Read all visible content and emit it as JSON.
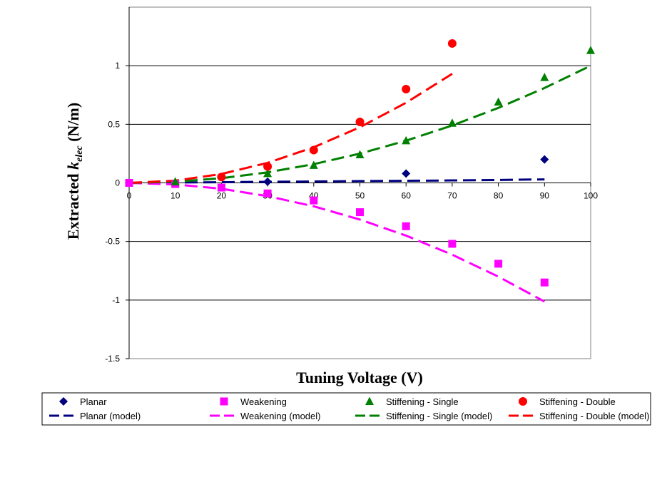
{
  "chart_data": {
    "type": "scatter",
    "xlabel": "Tuning Voltage (V)",
    "ylabel_main": "Extracted ",
    "ylabel_symbol": "k",
    "ylabel_sub": "elec",
    "ylabel_unit": " (N/m)",
    "xlim": [
      0,
      100
    ],
    "ylim": [
      -1.5,
      1.5
    ],
    "xticks": [
      0,
      10,
      20,
      30,
      40,
      50,
      60,
      70,
      80,
      90,
      100
    ],
    "yticks": [
      1,
      0.5,
      0,
      -0.5,
      -1,
      -1.5
    ],
    "grid": "horizontal",
    "legend_position": "bottom",
    "series": [
      {
        "name": "Planar",
        "kind": "points",
        "marker": "diamond",
        "color": "#000080",
        "x": [
          0,
          30,
          60,
          90
        ],
        "y": [
          0,
          0.01,
          0.08,
          0.2
        ]
      },
      {
        "name": "Weakening",
        "kind": "points",
        "marker": "square",
        "color": "#ff00ff",
        "x": [
          0,
          10,
          20,
          30,
          40,
          50,
          60,
          70,
          80,
          90
        ],
        "y": [
          0,
          -0.01,
          -0.04,
          -0.09,
          -0.15,
          -0.25,
          -0.37,
          -0.52,
          -0.69,
          -0.85
        ]
      },
      {
        "name": "Stiffening - Single",
        "kind": "points",
        "marker": "triangle",
        "color": "#008000",
        "x": [
          10,
          30,
          40,
          50,
          60,
          70,
          80,
          90,
          100
        ],
        "y": [
          0.01,
          0.08,
          0.15,
          0.24,
          0.36,
          0.51,
          0.69,
          0.9,
          1.13
        ]
      },
      {
        "name": "Stiffening - Double",
        "kind": "points",
        "marker": "circle",
        "color": "#ff0000",
        "x": [
          20,
          30,
          40,
          50,
          60,
          70
        ],
        "y": [
          0.05,
          0.14,
          0.28,
          0.52,
          0.8,
          1.19
        ]
      },
      {
        "name": "Planar (model)",
        "kind": "line",
        "color": "#000080",
        "x": [
          0,
          10,
          20,
          30,
          40,
          50,
          60,
          70,
          80,
          90
        ],
        "y": [
          0,
          0.003,
          0.006,
          0.009,
          0.012,
          0.015,
          0.018,
          0.021,
          0.025,
          0.03
        ]
      },
      {
        "name": "Weakening (model)",
        "kind": "line",
        "color": "#ff00ff",
        "x": [
          0,
          10,
          20,
          30,
          40,
          50,
          60,
          70,
          80,
          90
        ],
        "y": [
          0,
          -0.013,
          -0.05,
          -0.113,
          -0.2,
          -0.313,
          -0.45,
          -0.613,
          -0.8,
          -1.013
        ]
      },
      {
        "name": "Stiffening - Single (model)",
        "kind": "line",
        "color": "#008000",
        "x": [
          0,
          10,
          20,
          30,
          40,
          50,
          60,
          70,
          80,
          90,
          100
        ],
        "y": [
          0,
          0.01,
          0.04,
          0.09,
          0.16,
          0.25,
          0.36,
          0.49,
          0.64,
          0.81,
          1.0
        ]
      },
      {
        "name": "Stiffening - Double (model)",
        "kind": "line",
        "color": "#ff0000",
        "x": [
          0,
          10,
          20,
          30,
          40,
          50,
          60,
          70
        ],
        "y": [
          0,
          0.019,
          0.076,
          0.171,
          0.304,
          0.475,
          0.684,
          0.931
        ]
      }
    ]
  }
}
